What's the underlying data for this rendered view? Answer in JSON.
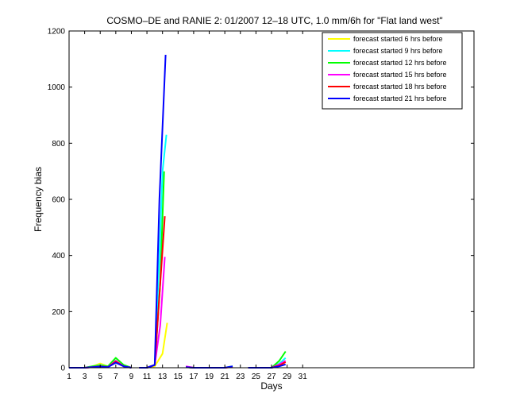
{
  "chart_data": {
    "type": "line",
    "title": "COSMO–DE and RANIE 2: 01/2007 12–18 UTC, 1.0 mm/6h for \"Flat land west\"",
    "xlabel": "Days",
    "ylabel": "Frequency bias",
    "xlim": [
      1,
      53
    ],
    "ylim": [
      0,
      1200
    ],
    "xticks": [
      1,
      3,
      5,
      7,
      9,
      11,
      13,
      15,
      17,
      19,
      21,
      23,
      25,
      27,
      29,
      31
    ],
    "xtick_labels": [
      "1",
      "3",
      "5",
      "7",
      "9",
      "11",
      "13",
      "15",
      "17",
      "19",
      "21",
      "23",
      "25",
      "27",
      "29",
      "31"
    ],
    "yticks": [
      0,
      200,
      400,
      600,
      800,
      1000,
      1200
    ],
    "ytick_labels": [
      "0",
      "200",
      "400",
      "600",
      "800",
      "1000",
      "1200"
    ],
    "grid": false,
    "legend_position": "top-right",
    "series": [
      {
        "name": "forecast started 6 hrs before",
        "color": "#ffff00",
        "segments": [
          [
            [
              1,
              0
            ],
            [
              3,
              0
            ],
            [
              4,
              5
            ],
            [
              5,
              15
            ],
            [
              6,
              5
            ],
            [
              7,
              20
            ],
            [
              8,
              5
            ],
            [
              9,
              0
            ]
          ],
          [
            [
              10,
              0
            ],
            [
              11,
              0
            ],
            [
              12,
              5
            ],
            [
              13,
              50
            ],
            [
              13.6,
              160
            ]
          ],
          [
            [
              16,
              2
            ],
            [
              17,
              0
            ],
            [
              19,
              0
            ],
            [
              21,
              0
            ],
            [
              22,
              3
            ]
          ],
          [
            [
              24,
              0
            ],
            [
              27,
              0
            ],
            [
              28,
              10
            ],
            [
              28.8,
              20
            ]
          ]
        ]
      },
      {
        "name": "forecast started 9 hrs before",
        "color": "#00ffff",
        "segments": [
          [
            [
              1,
              0
            ],
            [
              3,
              0
            ],
            [
              4,
              5
            ],
            [
              5,
              10
            ],
            [
              6,
              5
            ],
            [
              7,
              25
            ],
            [
              8,
              5
            ],
            [
              9,
              0
            ]
          ],
          [
            [
              10,
              0
            ],
            [
              11,
              0
            ],
            [
              12,
              10
            ],
            [
              12.6,
              400
            ],
            [
              13,
              700
            ],
            [
              13.5,
              830
            ]
          ],
          [
            [
              16,
              2
            ],
            [
              17,
              0
            ],
            [
              19,
              0
            ],
            [
              21,
              0
            ],
            [
              22,
              5
            ]
          ],
          [
            [
              24,
              0
            ],
            [
              27,
              0
            ],
            [
              28,
              15
            ],
            [
              28.8,
              35
            ]
          ]
        ]
      },
      {
        "name": "forecast started 12 hrs before",
        "color": "#00ff00",
        "segments": [
          [
            [
              1,
              0
            ],
            [
              3,
              0
            ],
            [
              4,
              5
            ],
            [
              5,
              8
            ],
            [
              6,
              5
            ],
            [
              7,
              35
            ],
            [
              8,
              10
            ],
            [
              9,
              0
            ]
          ],
          [
            [
              10,
              0
            ],
            [
              11,
              0
            ],
            [
              12,
              10
            ],
            [
              12.7,
              300
            ],
            [
              13.2,
              700
            ]
          ],
          [
            [
              16,
              2
            ],
            [
              17,
              0
            ],
            [
              19,
              0
            ],
            [
              21,
              0
            ],
            [
              22,
              5
            ]
          ],
          [
            [
              24,
              0
            ],
            [
              27,
              0
            ],
            [
              28,
              25
            ],
            [
              28.8,
              58
            ]
          ]
        ]
      },
      {
        "name": "forecast started 15 hrs before",
        "color": "#ff00ff",
        "segments": [
          [
            [
              1,
              0
            ],
            [
              3,
              0
            ],
            [
              4,
              2
            ],
            [
              5,
              5
            ],
            [
              6,
              2
            ],
            [
              7,
              25
            ],
            [
              8,
              5
            ],
            [
              9,
              0
            ]
          ],
          [
            [
              10,
              0
            ],
            [
              11,
              0
            ],
            [
              12,
              10
            ],
            [
              12.7,
              150
            ],
            [
              13.3,
              395
            ]
          ],
          [
            [
              16,
              5
            ],
            [
              17,
              0
            ],
            [
              19,
              0
            ],
            [
              21,
              0
            ],
            [
              22,
              3
            ]
          ],
          [
            [
              24,
              0
            ],
            [
              27,
              0
            ],
            [
              28,
              12
            ],
            [
              28.8,
              25
            ]
          ]
        ]
      },
      {
        "name": "forecast started 18 hrs before",
        "color": "#ff0000",
        "segments": [
          [
            [
              1,
              0
            ],
            [
              3,
              0
            ],
            [
              4,
              2
            ],
            [
              5,
              5
            ],
            [
              6,
              2
            ],
            [
              7,
              22
            ],
            [
              8,
              5
            ],
            [
              9,
              0
            ]
          ],
          [
            [
              10,
              0
            ],
            [
              11,
              0
            ],
            [
              12,
              10
            ],
            [
              12.7,
              300
            ],
            [
              13.3,
              540
            ]
          ],
          [
            [
              16,
              2
            ],
            [
              17,
              0
            ],
            [
              19,
              0
            ],
            [
              21,
              0
            ],
            [
              22,
              3
            ]
          ],
          [
            [
              24,
              0
            ],
            [
              27,
              0
            ],
            [
              28,
              8
            ],
            [
              28.8,
              20
            ]
          ]
        ]
      },
      {
        "name": "forecast started 21 hrs before",
        "color": "#0000ff",
        "segments": [
          [
            [
              1,
              0
            ],
            [
              3,
              0
            ],
            [
              4,
              2
            ],
            [
              5,
              4
            ],
            [
              6,
              2
            ],
            [
              7,
              18
            ],
            [
              8,
              5
            ],
            [
              9,
              0
            ]
          ],
          [
            [
              10,
              0
            ],
            [
              11,
              0
            ],
            [
              12,
              10
            ],
            [
              12.6,
              600
            ],
            [
              13.4,
              1115
            ]
          ],
          [
            [
              16,
              2
            ],
            [
              17,
              0
            ],
            [
              19,
              0
            ],
            [
              21,
              0
            ],
            [
              22,
              5
            ]
          ],
          [
            [
              24,
              0
            ],
            [
              27,
              0
            ],
            [
              28,
              5
            ],
            [
              28.8,
              12
            ]
          ]
        ]
      }
    ]
  }
}
